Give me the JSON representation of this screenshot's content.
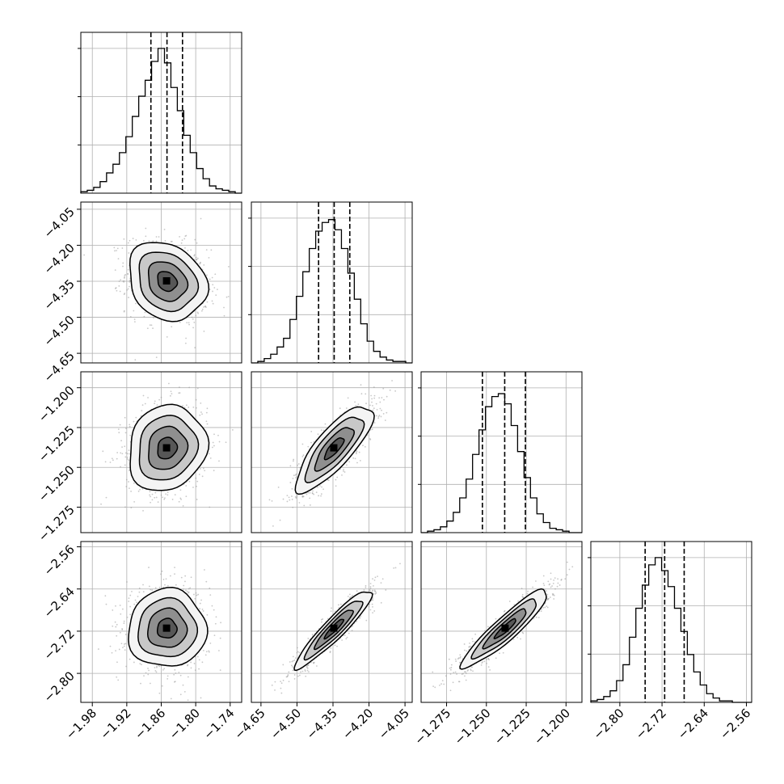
{
  "chart_data": {
    "type": "corner",
    "grid": true,
    "variables": [
      {
        "name": "",
        "range": [
          -2.0,
          -1.72
        ],
        "ticks": [
          "-1.98",
          "-1.92",
          "-1.86",
          "-1.80",
          "-1.74"
        ],
        "tick_values": [
          -1.98,
          -1.92,
          -1.86,
          -1.8,
          -1.74
        ],
        "quantiles": [
          -1.878,
          -1.85,
          -1.823
        ],
        "hist": [
          0.01,
          0.02,
          0.04,
          0.08,
          0.14,
          0.2,
          0.28,
          0.39,
          0.53,
          0.67,
          0.78,
          0.91,
          1.0,
          0.9,
          0.73,
          0.57,
          0.4,
          0.28,
          0.17,
          0.1,
          0.05,
          0.03,
          0.02,
          0.01,
          0.0
        ]
      },
      {
        "name": "",
        "range": [
          -4.69,
          -4.02
        ],
        "ticks": [
          "-4.65",
          "-4.50",
          "-4.35",
          "-4.20",
          "-4.05"
        ],
        "tick_values": [
          -4.65,
          -4.5,
          -4.35,
          -4.2,
          -4.05
        ],
        "quantiles": [
          -4.41,
          -4.345,
          -4.28
        ],
        "hist": [
          0.0,
          0.01,
          0.03,
          0.06,
          0.11,
          0.17,
          0.3,
          0.46,
          0.63,
          0.79,
          0.91,
          0.97,
          0.99,
          0.92,
          0.79,
          0.62,
          0.44,
          0.27,
          0.15,
          0.08,
          0.04,
          0.02,
          0.01,
          0.01,
          0.0
        ]
      },
      {
        "name": "",
        "range": [
          -1.291,
          -1.19
        ],
        "ticks": [
          "-1.275",
          "-1.250",
          "-1.225",
          "-1.200"
        ],
        "tick_values": [
          -1.275,
          -1.25,
          -1.225,
          -1.2
        ],
        "quantiles": [
          -1.2525,
          -1.2385,
          -1.2255
        ],
        "hist": [
          0.0,
          0.01,
          0.02,
          0.04,
          0.08,
          0.14,
          0.24,
          0.37,
          0.54,
          0.71,
          0.87,
          0.94,
          0.96,
          0.89,
          0.74,
          0.56,
          0.38,
          0.24,
          0.13,
          0.07,
          0.03,
          0.02,
          0.01,
          0.0,
          0.0
        ]
      },
      {
        "name": "",
        "range": [
          -2.855,
          -2.55
        ],
        "ticks": [
          "-2.80",
          "-2.72",
          "-2.64",
          "-2.56"
        ],
        "tick_values": [
          -2.8,
          -2.72,
          -2.64,
          -2.56
        ],
        "quantiles": [
          -2.752,
          -2.715,
          -2.678
        ],
        "hist": [
          0.01,
          0.02,
          0.04,
          0.08,
          0.15,
          0.26,
          0.45,
          0.65,
          0.81,
          0.95,
          1.0,
          0.91,
          0.8,
          0.65,
          0.49,
          0.33,
          0.21,
          0.12,
          0.06,
          0.03,
          0.01,
          0.01,
          0.0,
          0.0,
          0.0
        ]
      }
    ],
    "pairs": [
      {
        "row": 1,
        "col": 0,
        "mean": [
          -1.85,
          -4.35
        ],
        "sd": [
          0.034,
          0.082
        ],
        "rho": -0.2
      },
      {
        "row": 2,
        "col": 0,
        "mean": [
          -1.85,
          -1.238
        ],
        "sd": [
          0.034,
          0.0135
        ],
        "rho": 0.12
      },
      {
        "row": 2,
        "col": 1,
        "mean": [
          -4.345,
          -1.238
        ],
        "sd": [
          0.08,
          0.0135
        ],
        "rho": 0.8
      },
      {
        "row": 3,
        "col": 0,
        "mean": [
          -1.85,
          -2.715
        ],
        "sd": [
          0.034,
          0.037
        ],
        "rho": 0.02
      },
      {
        "row": 3,
        "col": 1,
        "mean": [
          -4.345,
          -2.715
        ],
        "sd": [
          0.08,
          0.037
        ],
        "rho": 0.93
      },
      {
        "row": 3,
        "col": 2,
        "mean": [
          -1.238,
          -2.715
        ],
        "sd": [
          0.0135,
          0.037
        ],
        "rho": 0.92
      }
    ],
    "contour_levels_sigma": [
      0.5,
      1.0,
      1.5,
      2.0
    ],
    "quantile_style": "dashed"
  }
}
